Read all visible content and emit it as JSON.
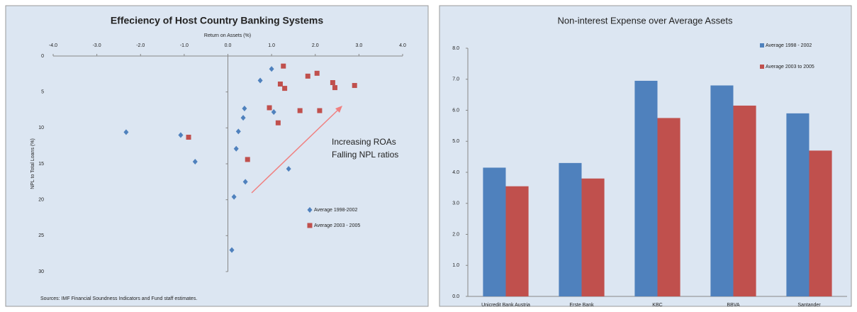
{
  "chart_data": [
    {
      "type": "scatter",
      "title": "Effeciency of Host Country Banking Systems",
      "xlabel": "Return on Assets (%)",
      "ylabel": "NPL to Total Loans (%)",
      "xlim": [
        -4,
        4
      ],
      "xticks": [
        {
          "value": -4,
          "label": "-4.0"
        },
        {
          "value": -3,
          "label": "-3.0"
        },
        {
          "value": -2,
          "label": "-2.0"
        },
        {
          "value": -1,
          "label": "-1.0"
        },
        {
          "value": 0,
          "label": "0.0"
        },
        {
          "value": 1,
          "label": "1.0"
        },
        {
          "value": 2,
          "label": "2.0"
        },
        {
          "value": 3,
          "label": "3.0"
        },
        {
          "value": 4,
          "label": "4.0"
        }
      ],
      "ylim": [
        30,
        0
      ],
      "yticks": [
        0,
        5,
        10,
        15,
        20,
        25,
        30
      ],
      "legend": "lower right",
      "series": [
        {
          "name": "Average 1998-2002",
          "color": "#4f81bd",
          "marker": "diamond",
          "x": [
            1.0,
            0.74,
            0.38,
            0.35,
            1.05,
            0.24,
            -2.33,
            -1.08,
            0.19,
            -0.75,
            1.39,
            0.4,
            0.14,
            0.09
          ],
          "values": [
            1.8,
            3.4,
            7.3,
            8.6,
            7.8,
            10.5,
            10.6,
            11.0,
            12.9,
            14.7,
            15.7,
            17.5,
            19.6,
            27.0
          ]
        },
        {
          "name": "Average 2003 - 2005",
          "color": "#c0504d",
          "marker": "square",
          "x": [
            1.27,
            1.83,
            2.04,
            1.2,
            1.3,
            2.4,
            2.45,
            2.9,
            0.95,
            1.65,
            2.1,
            1.15,
            -0.9,
            0.45
          ],
          "values": [
            1.4,
            2.8,
            2.4,
            3.9,
            4.5,
            3.7,
            4.4,
            4.1,
            7.2,
            7.6,
            7.6,
            9.3,
            11.3,
            14.4
          ]
        }
      ],
      "annotation": [
        "Increasing ROAs",
        "Falling NPL ratios"
      ],
      "source": "Sources: IMF Financial Soundness Indicators and Fund staff estimates."
    },
    {
      "type": "bar",
      "title": "Non-interest Expense over Average Assets",
      "categories": [
        "Unicredit Bank Austria",
        "Erste Bank",
        "KBC",
        "BBVA",
        "Santander"
      ],
      "ylim": [
        0,
        8
      ],
      "yticks": [
        {
          "value": 0,
          "label": "0.0"
        },
        {
          "value": 1,
          "label": "1.0"
        },
        {
          "value": 2,
          "label": "2.0"
        },
        {
          "value": 3,
          "label": "3.0"
        },
        {
          "value": 4,
          "label": "4.0"
        },
        {
          "value": 5,
          "label": "5.0"
        },
        {
          "value": 6,
          "label": "6.0"
        },
        {
          "value": 7,
          "label": "7.0"
        },
        {
          "value": 8,
          "label": "8.0"
        }
      ],
      "legend": "upper right",
      "series": [
        {
          "name": "Average 1998 - 2002",
          "color": "#4f81bd",
          "values": [
            4.15,
            4.3,
            6.95,
            6.8,
            5.9
          ]
        },
        {
          "name": "Average 2003 to 2005",
          "color": "#c0504d",
          "values": [
            3.55,
            3.8,
            5.75,
            6.15,
            4.7
          ]
        }
      ]
    }
  ]
}
